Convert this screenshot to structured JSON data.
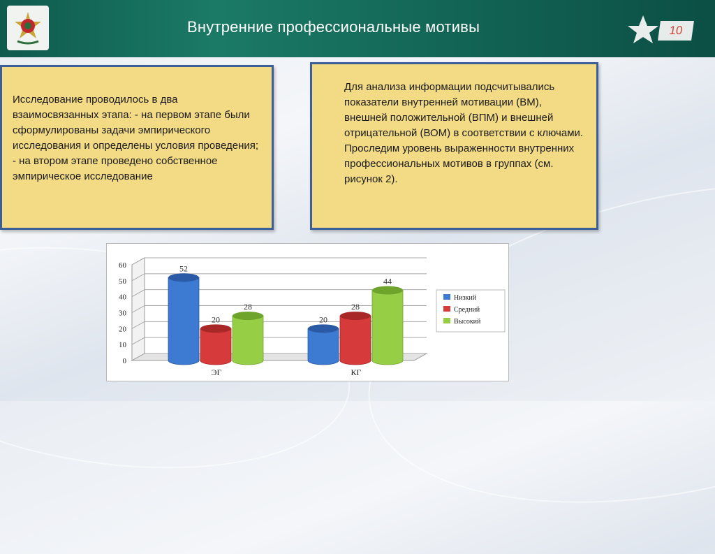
{
  "header": {
    "title": "Внутренние профессиональные мотивы",
    "slide_number": "10",
    "logo_icon": "emblem-icon",
    "star_icon": "star-icon"
  },
  "boxes": {
    "left_text": "Исследование проводилось в два взаимосвязанных этапа: - на первом этапе были сформулированы задачи эмпирического исследования и определены условия проведения; - на втором этапе проведено собственное эмпирическое исследование",
    "right_text": "Для анализа информации подсчитывались показатели внутренней мотивации (ВМ), внешней положительной (ВПМ) и внешней отрицательной (ВОМ) в соответствии с ключами. Проследим уровень выраженности внутренних профессиональных мотивов в группах (см. рисунок 2)."
  },
  "colors": {
    "header_green": "#116152",
    "box_fill": "#f3db86",
    "box_border": "#3b5f96",
    "series_low": "#3d7ad1",
    "series_mid": "#d63a3a",
    "series_high": "#96cf45"
  },
  "chart_data": {
    "type": "bar",
    "style": "3d-cylinder",
    "categories": [
      "ЭГ",
      "КГ"
    ],
    "series": [
      {
        "name": "Низкий",
        "values": [
          52,
          20
        ],
        "labels": [
          "52",
          "20"
        ]
      },
      {
        "name": "Средний",
        "values": [
          20,
          28
        ],
        "labels": [
          "20",
          "28"
        ]
      },
      {
        "name": "Высокий",
        "values": [
          28,
          44
        ],
        "labels": [
          "28",
          "44"
        ]
      }
    ],
    "ylim": [
      0,
      60
    ],
    "yticks": [
      "0",
      "10",
      "20",
      "30",
      "40",
      "50",
      "60"
    ],
    "grid": true,
    "legend": "right"
  }
}
